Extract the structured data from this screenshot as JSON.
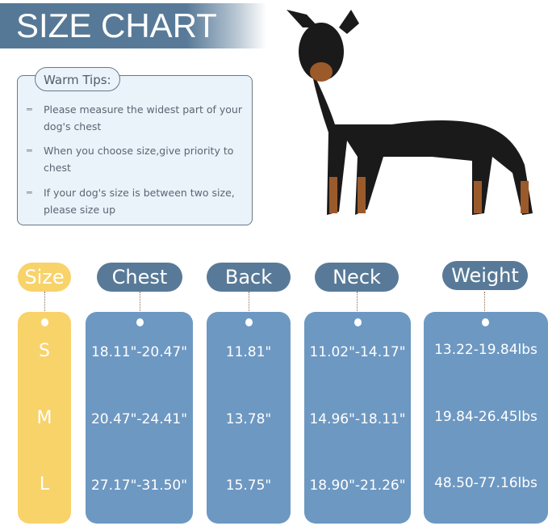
{
  "title": "SIZE CHART",
  "tips": {
    "label": "Warm Tips:",
    "items": [
      "Please measure the widest part of your dog's chest",
      "When you choose size,give priority to chest",
      "If your dog's size is between two size, please size up"
    ],
    "bullet_icon": "dash-lines-icon"
  },
  "colors": {
    "header_blue": "#587a98",
    "card_blue": "#6d98c2",
    "size_yellow": "#f8d36a"
  },
  "table": {
    "size": {
      "header": "Size",
      "values": [
        "S",
        "M",
        "L"
      ]
    },
    "chest": {
      "header": "Chest",
      "values": [
        "18.11\"-20.47\"",
        "20.47\"-24.41\"",
        "27.17\"-31.50\""
      ]
    },
    "back": {
      "header": "Back",
      "values": [
        "11.81\"",
        "13.78\"",
        "15.75\""
      ]
    },
    "neck": {
      "header": "Neck",
      "values": [
        "11.02\"-14.17\"",
        "14.96\"-18.11\"",
        "18.90\"-21.26\""
      ]
    },
    "weight": {
      "header": "Weight",
      "values": [
        "13.22-19.84lbs",
        "19.84-26.45lbs",
        "48.50-77.16lbs"
      ]
    }
  }
}
